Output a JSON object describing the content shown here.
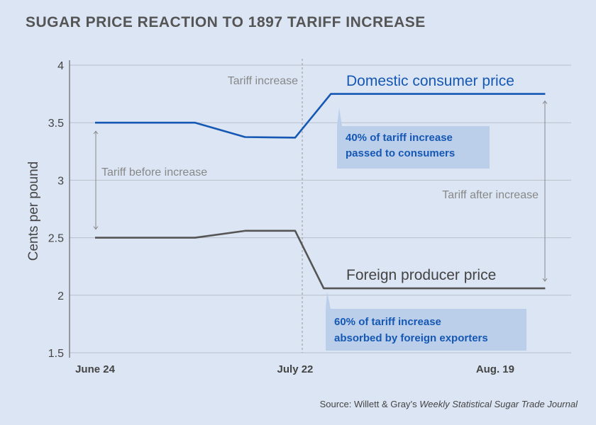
{
  "title": "SUGAR PRICE REACTION TO 1897 TARIFF INCREASE",
  "source": {
    "prefix": "Source: Willett & Gray’s ",
    "journal": "Weekly Statistical Sugar Trade Journal"
  },
  "chart_data": {
    "type": "line",
    "title": "SUGAR PRICE REACTION TO 1897 TARIFF INCREASE",
    "xlabel": "",
    "ylabel": "Cents per pound",
    "ylim": [
      1.5,
      4
    ],
    "yticks": [
      "1.5",
      "2",
      "2.5",
      "3",
      "3.5",
      "4"
    ],
    "xticks": [
      {
        "label": "June 24",
        "date": "1897-06-24"
      },
      {
        "label": "July 22",
        "date": "1897-07-22"
      },
      {
        "label": "Aug. 19",
        "date": "1897-08-19"
      }
    ],
    "xlim": [
      "1897-06-20",
      "1897-08-30"
    ],
    "grid": true,
    "series": [
      {
        "name": "Domestic consumer price",
        "color": "#1558b4",
        "x": [
          "1897-06-24",
          "1897-07-08",
          "1897-07-15",
          "1897-07-22",
          "1897-07-27",
          "1897-08-26"
        ],
        "values": [
          3.5,
          3.5,
          3.375,
          3.37,
          3.75,
          3.75
        ]
      },
      {
        "name": "Foreign producer price",
        "color": "#555555",
        "x": [
          "1897-06-24",
          "1897-07-08",
          "1897-07-15",
          "1897-07-22",
          "1897-07-26",
          "1897-08-26"
        ],
        "values": [
          2.5,
          2.5,
          2.56,
          2.56,
          2.06,
          2.06
        ]
      }
    ],
    "annotations": {
      "tariff_increase": {
        "label": "Tariff increase",
        "date": "1897-07-23"
      },
      "tariff_before": "Tariff before increase",
      "tariff_after": "Tariff after increase",
      "consumer_note": [
        "40% of  tariff increase",
        "passed to consumers"
      ],
      "foreign_note": [
        "60% of tariff increase",
        "absorbed by foreign exporters"
      ]
    }
  }
}
